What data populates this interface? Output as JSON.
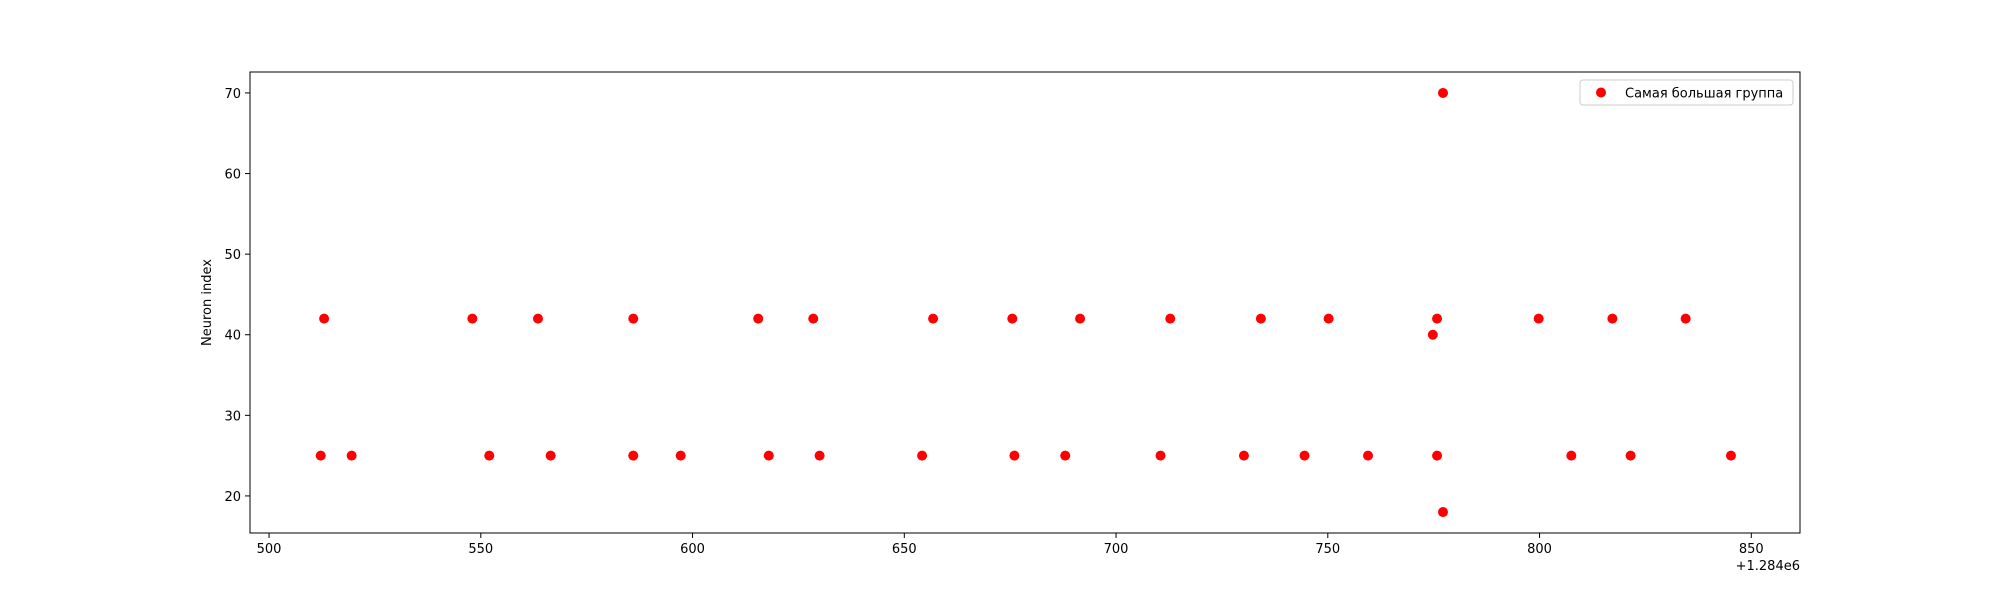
{
  "chart_data": {
    "type": "scatter",
    "title": "",
    "xlabel": "",
    "ylabel": "Neuron index",
    "x_offset_label": "+1.284e6",
    "x_offset": 1284000,
    "xlim": [
      495.5,
      861.5
    ],
    "ylim": [
      15.4,
      72.6
    ],
    "xticks": [
      500,
      550,
      600,
      650,
      700,
      750,
      800,
      850
    ],
    "yticks": [
      20,
      30,
      40,
      50,
      60,
      70
    ],
    "grid": false,
    "legend_position": "top-right",
    "series": [
      {
        "name": "Самая большая группа",
        "color": "#ff0000",
        "points": [
          {
            "x": 512.2,
            "y": 25
          },
          {
            "x": 513.0,
            "y": 42
          },
          {
            "x": 519.5,
            "y": 25
          },
          {
            "x": 548.0,
            "y": 42
          },
          {
            "x": 552.0,
            "y": 25
          },
          {
            "x": 563.5,
            "y": 42
          },
          {
            "x": 566.5,
            "y": 25
          },
          {
            "x": 586.0,
            "y": 42
          },
          {
            "x": 586.0,
            "y": 25
          },
          {
            "x": 597.2,
            "y": 25
          },
          {
            "x": 615.5,
            "y": 42
          },
          {
            "x": 618.0,
            "y": 25
          },
          {
            "x": 628.5,
            "y": 42
          },
          {
            "x": 630.0,
            "y": 25
          },
          {
            "x": 654.2,
            "y": 25
          },
          {
            "x": 656.8,
            "y": 42
          },
          {
            "x": 675.5,
            "y": 42
          },
          {
            "x": 676.0,
            "y": 25
          },
          {
            "x": 688.0,
            "y": 25
          },
          {
            "x": 691.5,
            "y": 42
          },
          {
            "x": 710.5,
            "y": 25
          },
          {
            "x": 712.8,
            "y": 42
          },
          {
            "x": 730.2,
            "y": 25
          },
          {
            "x": 734.2,
            "y": 42
          },
          {
            "x": 744.5,
            "y": 25
          },
          {
            "x": 750.2,
            "y": 42
          },
          {
            "x": 759.5,
            "y": 25
          },
          {
            "x": 774.8,
            "y": 40
          },
          {
            "x": 775.8,
            "y": 42
          },
          {
            "x": 775.8,
            "y": 25
          },
          {
            "x": 777.2,
            "y": 70
          },
          {
            "x": 777.2,
            "y": 18
          },
          {
            "x": 799.8,
            "y": 42
          },
          {
            "x": 807.5,
            "y": 25
          },
          {
            "x": 817.2,
            "y": 42
          },
          {
            "x": 821.5,
            "y": 25
          },
          {
            "x": 834.5,
            "y": 42
          },
          {
            "x": 845.2,
            "y": 25
          }
        ]
      }
    ]
  }
}
